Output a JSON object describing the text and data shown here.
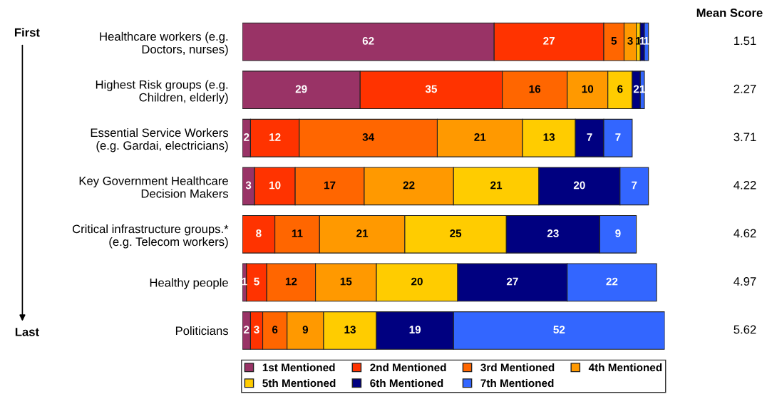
{
  "chart_data": {
    "type": "bar",
    "orientation": "horizontal",
    "stacked": true,
    "data_labels": true,
    "legend": "bottom",
    "grid": false,
    "tick_labels": "y",
    "xlim": [
      0,
      104
    ],
    "categories": [
      "Healthcare workers (e.g.\nDoctors, nurses)",
      "Highest Risk groups (e.g.\nChildren, elderly)",
      "Essential Service Workers\n(e.g. Gardai, electricians)",
      "Key Government Healthcare\nDecision Makers",
      "Critical infrastructure groups.*\n(e.g. Telecom workers)",
      "Healthy people",
      "Politicians"
    ],
    "series": [
      {
        "name": "1st Mentioned",
        "color": "#993366",
        "values": [
          62,
          29,
          2,
          3,
          null,
          1,
          2
        ]
      },
      {
        "name": "2nd Mentioned",
        "color": "#ff3300",
        "values": [
          27,
          35,
          12,
          10,
          8,
          5,
          3
        ]
      },
      {
        "name": "3rd Mentioned",
        "color": "#ff6600",
        "values": [
          5,
          16,
          34,
          17,
          11,
          12,
          6
        ]
      },
      {
        "name": "4th Mentioned",
        "color": "#ff9900",
        "values": [
          3,
          10,
          21,
          22,
          21,
          15,
          9
        ]
      },
      {
        "name": "5th Mentioned",
        "color": "#ffcc00",
        "values": [
          1,
          6,
          13,
          21,
          25,
          20,
          13
        ]
      },
      {
        "name": "6th Mentioned",
        "color": "#000080",
        "values": [
          1,
          2,
          7,
          20,
          23,
          27,
          19
        ]
      },
      {
        "name": "7th Mentioned",
        "color": "#3366ff",
        "values": [
          1,
          1,
          7,
          7,
          9,
          22,
          52
        ]
      }
    ],
    "annotations": [
      "First",
      "Last",
      "Mean Score",
      "1.51",
      "2.27",
      "3.71",
      "4.22",
      "4.62",
      "4.97",
      "5.62"
    ]
  }
}
